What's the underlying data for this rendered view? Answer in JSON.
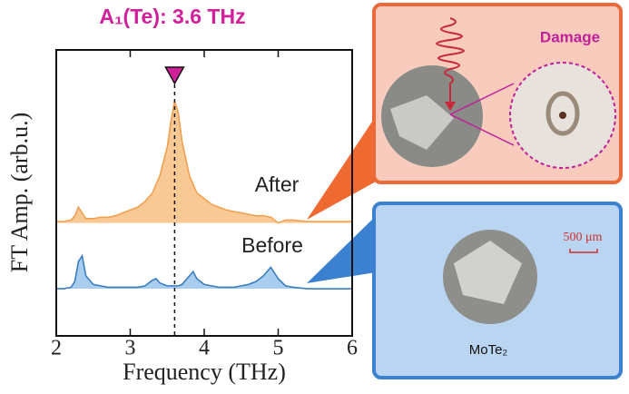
{
  "chart_data": {
    "type": "line",
    "title": "A₁(Te): 3.6 THz",
    "x_label": "Frequency (THz)",
    "y_label": "FT Amp. (arb.u.)",
    "x": [
      2.0,
      2.1,
      2.2,
      2.25,
      2.3,
      2.35,
      2.4,
      2.5,
      2.6,
      2.7,
      2.8,
      2.9,
      3.0,
      3.1,
      3.2,
      3.3,
      3.35,
      3.4,
      3.5,
      3.55,
      3.6,
      3.65,
      3.7,
      3.8,
      3.85,
      3.9,
      4.0,
      4.1,
      4.2,
      4.3,
      4.4,
      4.5,
      4.6,
      4.7,
      4.8,
      4.9,
      5.0,
      5.1,
      5.2,
      5.4,
      5.6,
      5.8,
      6.0
    ],
    "series": [
      {
        "name": "After",
        "color": "#f0a050",
        "fill": "#f9c995",
        "values": [
          4.0,
          4.0,
          4.05,
          4.2,
          4.5,
          4.3,
          4.1,
          4.1,
          4.15,
          4.15,
          4.2,
          4.3,
          4.4,
          4.5,
          4.7,
          5.0,
          5.3,
          5.6,
          6.6,
          7.5,
          8.2,
          7.8,
          6.8,
          5.6,
          5.3,
          5.0,
          4.8,
          4.6,
          4.5,
          4.4,
          4.35,
          4.3,
          4.25,
          4.2,
          4.2,
          4.15,
          3.95,
          4.05,
          4.05,
          4.0,
          4.0,
          4.0,
          4.0
        ]
      },
      {
        "name": "Before",
        "color": "#3a7dc0",
        "fill": "#a9cdee",
        "values": [
          1.65,
          1.65,
          1.7,
          1.9,
          2.6,
          2.8,
          2.1,
          1.8,
          1.75,
          1.7,
          1.7,
          1.7,
          1.7,
          1.7,
          1.75,
          1.95,
          2.0,
          1.85,
          1.75,
          1.75,
          1.75,
          1.75,
          1.8,
          2.1,
          2.25,
          2.0,
          1.8,
          1.75,
          1.7,
          1.7,
          1.7,
          1.75,
          1.8,
          1.9,
          2.1,
          2.4,
          2.0,
          1.75,
          1.7,
          1.65,
          1.65,
          1.65,
          1.65
        ]
      }
    ],
    "marker_x": 3.6,
    "marker_color": "#d0209a",
    "xlim": [
      2,
      6
    ],
    "xticks": [
      2,
      3,
      4,
      5,
      6
    ],
    "ylim": [
      0,
      10
    ]
  },
  "panels": {
    "damage": "Damage",
    "scale": "500 μm",
    "material": "MoTe₂"
  }
}
